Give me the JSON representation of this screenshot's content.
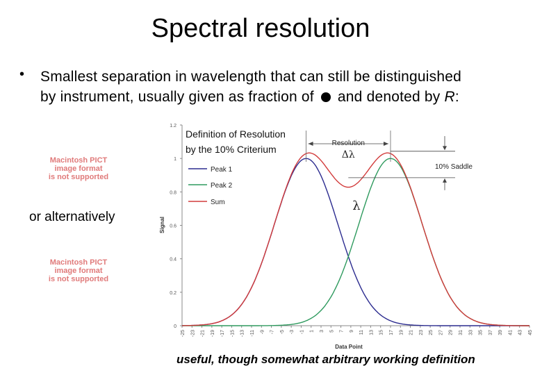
{
  "slide": {
    "title": "Spectral resolution",
    "bullet_line1": "Smallest separation in wavelength that can still be distinguished",
    "bullet_line2_pre": "by instrument, usually given as fraction of",
    "bullet_line2_post": "and denoted by",
    "bullet_R": "R",
    "bullet_colon": ":",
    "pict1": [
      "Macintosh PICT",
      "image format",
      "is not supported"
    ],
    "pict2": [
      "Macintosh PICT",
      "image format",
      "is not supported"
    ],
    "alternatively": "or alternatively",
    "footer": "useful, though somewhat arbitrary working definition"
  },
  "chart_data": {
    "type": "line",
    "title": "Definition of Resolution by the 10% Criterium",
    "title_line1": "Definition of Resolution",
    "title_line2": "by the 10% Criterium",
    "xlabel": "Data Point",
    "ylabel": "Signal",
    "x_ticks": [
      "-25",
      "-23",
      "-21",
      "-19",
      "-17",
      "-15",
      "-13",
      "-11",
      "-9",
      "-7",
      "-5",
      "-3",
      "-1",
      "1",
      "3",
      "5",
      "7",
      "9",
      "11",
      "13",
      "15",
      "17",
      "19",
      "21",
      "23",
      "25",
      "27",
      "29",
      "31",
      "33",
      "35",
      "37",
      "39",
      "41",
      "43",
      "45"
    ],
    "y_ticks": [
      "0",
      "0.2",
      "0.4",
      "0.6",
      "0.8",
      "1",
      "1.2"
    ],
    "xlim": [
      -25,
      45
    ],
    "ylim": [
      0,
      1.2
    ],
    "series": [
      {
        "name": "Peak 1",
        "color": "#2b2b8f",
        "center": 0,
        "amplitude": 1.0,
        "sigma": 6.4
      },
      {
        "name": "Peak 2",
        "color": "#2e9a5e",
        "center": 17,
        "amplitude": 1.0,
        "sigma": 6.4
      },
      {
        "name": "Sum",
        "color": "#d23b3b"
      }
    ],
    "annotations": {
      "resolution": "Resolution",
      "delta_lambda": "Δλ",
      "lambda": "λ",
      "saddle": "10% Saddle"
    },
    "legend_position": "upper-left"
  },
  "colors": {
    "axis": "#888888",
    "pict_text": "#e07a7a"
  }
}
